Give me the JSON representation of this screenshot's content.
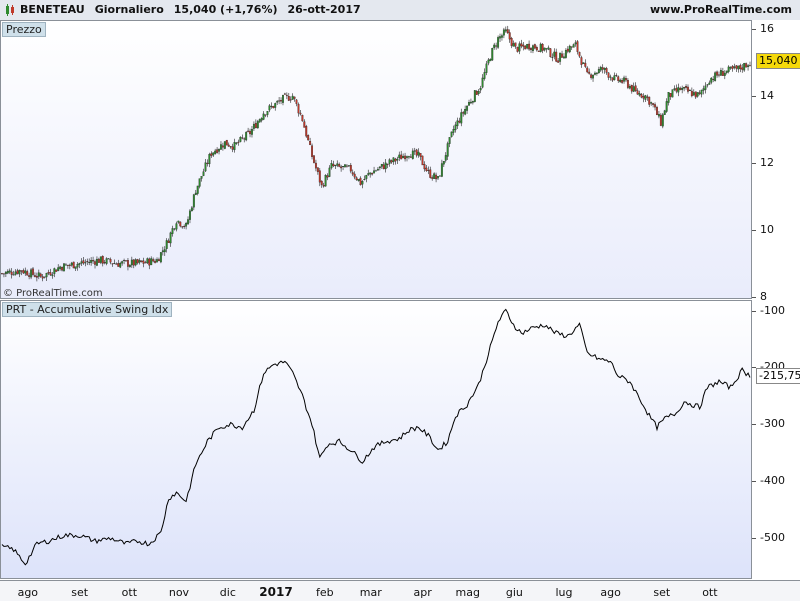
{
  "header": {
    "symbol": "BENETEAU",
    "period": "Giornaliero",
    "last_change": "15,040 (+1,76%)",
    "date": "26-ott-2017",
    "site": "www.ProRealTime.com"
  },
  "price_panel": {
    "label": "Prezzo",
    "copyright": "© ProRealTime.com",
    "current_tag": "15,040",
    "tag_color": "#f5d90a"
  },
  "indicator_panel": {
    "label": "PRT - Accumulative Swing Idx",
    "current_tag": "-215,75"
  },
  "chart_data": [
    {
      "type": "candlestick",
      "yticks": [
        "8",
        "10",
        "12",
        "14",
        "16"
      ],
      "ylim": [
        8,
        16.2
      ],
      "up_color": "#2f8a2f",
      "down_color": "#c0392b",
      "anchors": [
        [
          0,
          8.7
        ],
        [
          10,
          8.8
        ],
        [
          20,
          8.6
        ],
        [
          30,
          8.9
        ],
        [
          40,
          9.0
        ],
        [
          50,
          9.1
        ],
        [
          60,
          9.0
        ],
        [
          70,
          9.0
        ],
        [
          80,
          9.1
        ],
        [
          85,
          9.6
        ],
        [
          90,
          10.3
        ],
        [
          95,
          10.1
        ],
        [
          100,
          11.2
        ],
        [
          108,
          12.3
        ],
        [
          115,
          12.6
        ],
        [
          120,
          12.5
        ],
        [
          128,
          12.9
        ],
        [
          135,
          13.5
        ],
        [
          140,
          13.7
        ],
        [
          145,
          13.9
        ],
        [
          150,
          14.0
        ],
        [
          155,
          13.3
        ],
        [
          160,
          12.2
        ],
        [
          165,
          11.3
        ],
        [
          170,
          11.9
        ],
        [
          180,
          11.8
        ],
        [
          185,
          11.4
        ],
        [
          190,
          11.7
        ],
        [
          200,
          12.0
        ],
        [
          210,
          12.3
        ],
        [
          215,
          12.2
        ],
        [
          220,
          11.7
        ],
        [
          225,
          11.5
        ],
        [
          228,
          12.1
        ],
        [
          233,
          13.0
        ],
        [
          240,
          13.7
        ],
        [
          247,
          14.3
        ],
        [
          252,
          15.2
        ],
        [
          256,
          15.7
        ],
        [
          260,
          15.9
        ],
        [
          265,
          15.4
        ],
        [
          272,
          15.5
        ],
        [
          280,
          15.4
        ],
        [
          287,
          15.1
        ],
        [
          292,
          15.4
        ],
        [
          296,
          15.5
        ],
        [
          302,
          14.6
        ],
        [
          310,
          14.8
        ],
        [
          316,
          14.5
        ],
        [
          322,
          14.4
        ],
        [
          327,
          14.1
        ],
        [
          332,
          14.0
        ],
        [
          336,
          13.7
        ],
        [
          340,
          13.2
        ],
        [
          344,
          14.0
        ],
        [
          350,
          14.2
        ],
        [
          355,
          14.1
        ],
        [
          360,
          14.0
        ],
        [
          365,
          14.5
        ],
        [
          372,
          14.7
        ],
        [
          380,
          14.8
        ],
        [
          386,
          15.0
        ]
      ],
      "last_close": 15.04
    },
    {
      "type": "line",
      "yticks": [
        "-100",
        "-200",
        "-300",
        "-400",
        "-500"
      ],
      "ylim": [
        -570,
        -85
      ],
      "color": "#000000",
      "anchors": [
        [
          0,
          -515
        ],
        [
          6,
          -520
        ],
        [
          12,
          -545
        ],
        [
          18,
          -510
        ],
        [
          24,
          -505
        ],
        [
          32,
          -495
        ],
        [
          40,
          -495
        ],
        [
          48,
          -505
        ],
        [
          56,
          -500
        ],
        [
          64,
          -510
        ],
        [
          70,
          -505
        ],
        [
          76,
          -510
        ],
        [
          82,
          -490
        ],
        [
          86,
          -430
        ],
        [
          90,
          -420
        ],
        [
          95,
          -435
        ],
        [
          100,
          -370
        ],
        [
          106,
          -330
        ],
        [
          112,
          -305
        ],
        [
          118,
          -300
        ],
        [
          124,
          -305
        ],
        [
          130,
          -275
        ],
        [
          135,
          -210
        ],
        [
          140,
          -195
        ],
        [
          146,
          -190
        ],
        [
          150,
          -210
        ],
        [
          155,
          -250
        ],
        [
          160,
          -300
        ],
        [
          164,
          -360
        ],
        [
          168,
          -335
        ],
        [
          174,
          -330
        ],
        [
          180,
          -345
        ],
        [
          186,
          -365
        ],
        [
          192,
          -340
        ],
        [
          198,
          -330
        ],
        [
          205,
          -325
        ],
        [
          210,
          -310
        ],
        [
          215,
          -305
        ],
        [
          220,
          -320
        ],
        [
          225,
          -345
        ],
        [
          230,
          -330
        ],
        [
          234,
          -285
        ],
        [
          240,
          -265
        ],
        [
          246,
          -230
        ],
        [
          252,
          -165
        ],
        [
          256,
          -120
        ],
        [
          260,
          -100
        ],
        [
          264,
          -125
        ],
        [
          268,
          -140
        ],
        [
          274,
          -130
        ],
        [
          280,
          -125
        ],
        [
          286,
          -140
        ],
        [
          292,
          -145
        ],
        [
          298,
          -125
        ],
        [
          302,
          -175
        ],
        [
          308,
          -185
        ],
        [
          314,
          -190
        ],
        [
          318,
          -215
        ],
        [
          324,
          -225
        ],
        [
          330,
          -260
        ],
        [
          334,
          -285
        ],
        [
          338,
          -305
        ],
        [
          342,
          -290
        ],
        [
          348,
          -280
        ],
        [
          352,
          -260
        ],
        [
          356,
          -265
        ],
        [
          360,
          -270
        ],
        [
          364,
          -235
        ],
        [
          370,
          -225
        ],
        [
          376,
          -235
        ],
        [
          382,
          -205
        ],
        [
          386,
          -215
        ]
      ],
      "last_value": -215.75
    }
  ],
  "x_axis": {
    "labels": [
      {
        "text": "ago",
        "pos": 0.037,
        "bold": false
      },
      {
        "text": "set",
        "pos": 0.106,
        "bold": false
      },
      {
        "text": "ott",
        "pos": 0.172,
        "bold": false
      },
      {
        "text": "nov",
        "pos": 0.238,
        "bold": false
      },
      {
        "text": "dic",
        "pos": 0.303,
        "bold": false
      },
      {
        "text": "2017",
        "pos": 0.367,
        "bold": true
      },
      {
        "text": "feb",
        "pos": 0.432,
        "bold": false
      },
      {
        "text": "mar",
        "pos": 0.493,
        "bold": false
      },
      {
        "text": "apr",
        "pos": 0.562,
        "bold": false
      },
      {
        "text": "mag",
        "pos": 0.622,
        "bold": false
      },
      {
        "text": "giu",
        "pos": 0.684,
        "bold": false
      },
      {
        "text": "lug",
        "pos": 0.75,
        "bold": false
      },
      {
        "text": "ago",
        "pos": 0.812,
        "bold": false
      },
      {
        "text": "set",
        "pos": 0.88,
        "bold": false
      },
      {
        "text": "ott",
        "pos": 0.944,
        "bold": false
      }
    ]
  }
}
